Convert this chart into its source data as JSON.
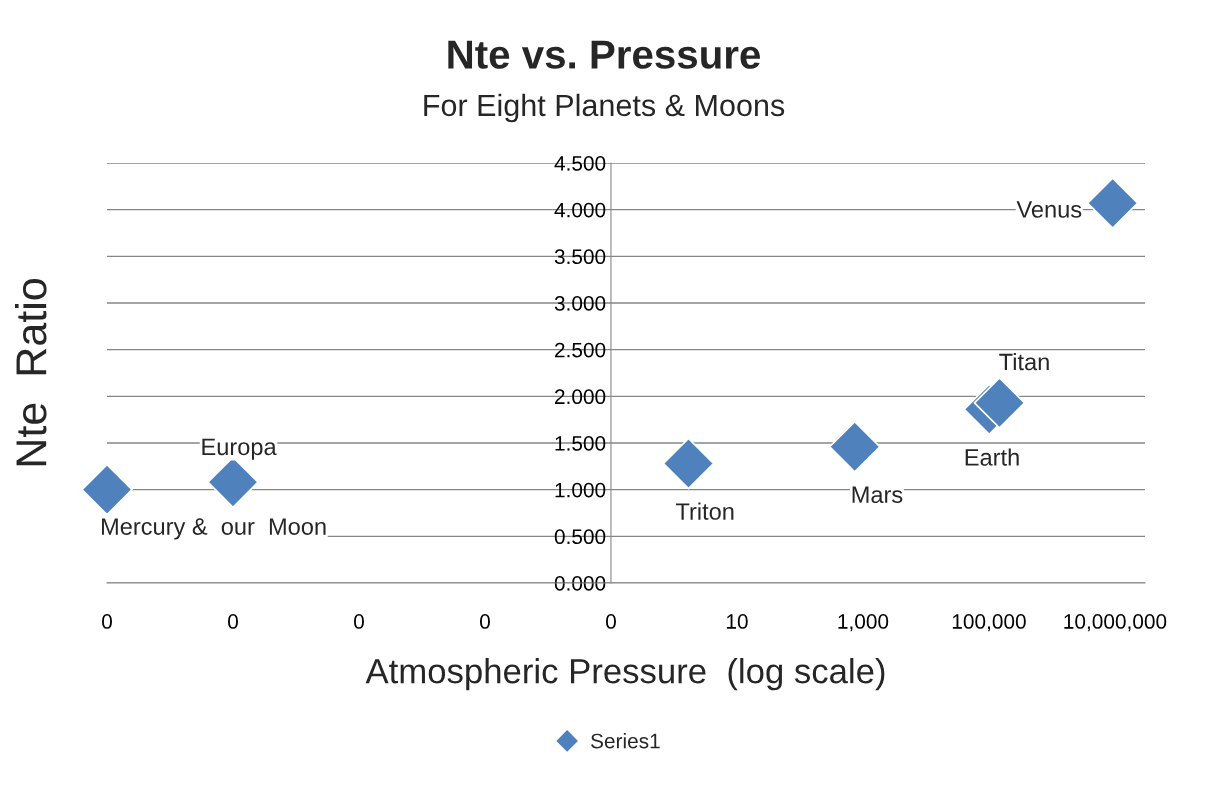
{
  "chart_data": {
    "type": "scatter",
    "title": "Nte vs. Pressure",
    "subtitle": "For Eight Planets & Moons",
    "xlabel": "Atmospheric Pressure  (log scale)",
    "ylabel": "Nte  Ratio",
    "x": [
      1e-09,
      1e-07,
      1.7,
      740,
      101000,
      147000,
      9200000
    ],
    "series": [
      {
        "name": "Series1",
        "color": "#4f81bd",
        "values": [
          1.0,
          1.08,
          1.28,
          1.46,
          1.86,
          1.93,
          4.07
        ]
      }
    ],
    "annotations": [
      {
        "text": "Mercury &  our  Moon",
        "x": 1e-09,
        "y": 1.0
      },
      {
        "text": "Europa",
        "x": 1e-07,
        "y": 1.08
      },
      {
        "text": "Triton",
        "x": 1.7,
        "y": 1.28
      },
      {
        "text": "Mars",
        "x": 740,
        "y": 1.46
      },
      {
        "text": "Earth",
        "x": 101000,
        "y": 1.86
      },
      {
        "text": "Titan",
        "x": 147000,
        "y": 1.93
      },
      {
        "text": "Venus",
        "x": 9200000,
        "y": 4.07
      }
    ],
    "log": "x",
    "xlim": [
      1e-09,
      30000000
    ],
    "ylim": [
      0,
      4.5
    ],
    "xticks": [
      {
        "value": 1e-09,
        "label": "0"
      },
      {
        "value": 1e-07,
        "label": "0"
      },
      {
        "value": 1e-05,
        "label": "0"
      },
      {
        "value": 0.001,
        "label": "0"
      },
      {
        "value": 0.1,
        "label": "0"
      },
      10,
      {
        "value": 1000,
        "label": "1,000"
      },
      {
        "value": 100000,
        "label": "100,000"
      },
      {
        "value": 10000000,
        "label": "10,000,000"
      }
    ],
    "yticks": [
      {
        "value": 0,
        "label": "0.000"
      },
      {
        "value": 0.5,
        "label": "0.500"
      },
      {
        "value": 1,
        "label": "1.000"
      },
      {
        "value": 1.5,
        "label": "1.500"
      },
      {
        "value": 2,
        "label": "2.000"
      },
      {
        "value": 2.5,
        "label": "2.500"
      },
      {
        "value": 3,
        "label": "3.000"
      },
      {
        "value": 3.5,
        "label": "3.500"
      },
      {
        "value": 4,
        "label": "4.000"
      },
      {
        "value": 4.5,
        "label": "4.500"
      }
    ],
    "grid": "y",
    "legend": "bottom",
    "marker": "diamond"
  }
}
